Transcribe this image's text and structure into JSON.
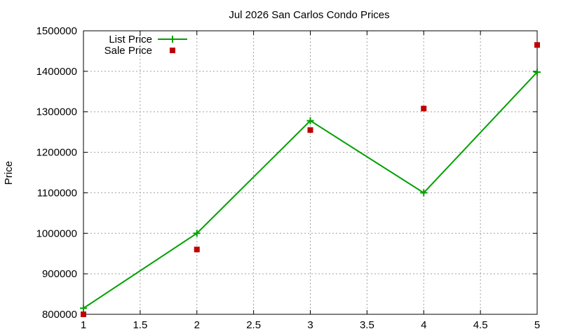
{
  "chart_data": {
    "type": "line",
    "title": "Jul 2026 San Carlos Condo Prices",
    "xlabel": "",
    "ylabel": "Price",
    "xlim": [
      1,
      5
    ],
    "ylim": [
      800000,
      1500000
    ],
    "xticks": [
      "1",
      "1.5",
      "2",
      "2.5",
      "3",
      "3.5",
      "4",
      "4.5",
      "5"
    ],
    "yticks": [
      "800000",
      "900000",
      "1000000",
      "1100000",
      "1200000",
      "1300000",
      "1400000",
      "1500000"
    ],
    "grid": true,
    "legend_position": "top-left",
    "series": [
      {
        "name": "List Price",
        "style": "linespoints",
        "marker": "plus",
        "color": "#00a000",
        "x": [
          1,
          2,
          3,
          4,
          5
        ],
        "values": [
          815000,
          1000000,
          1278000,
          1100000,
          1398000
        ]
      },
      {
        "name": "Sale Price",
        "style": "points",
        "marker": "square",
        "color": "#c00000",
        "x": [
          1,
          2,
          3,
          4,
          5
        ],
        "values": [
          800000,
          960000,
          1255000,
          1308000,
          1465000
        ]
      }
    ]
  }
}
